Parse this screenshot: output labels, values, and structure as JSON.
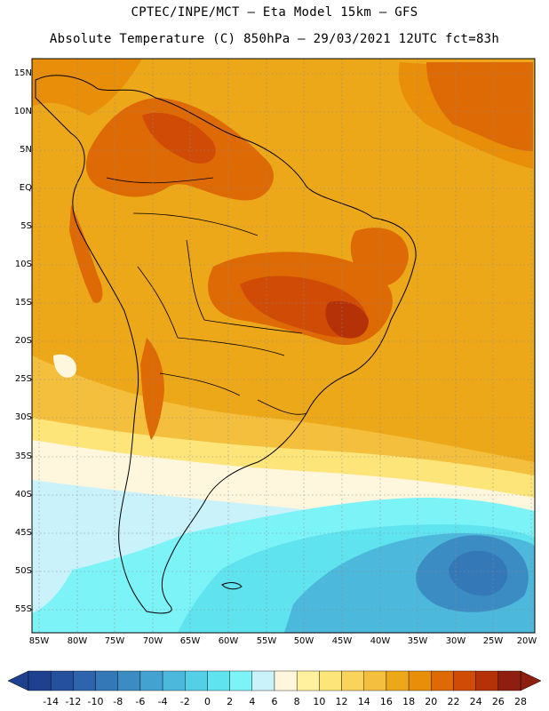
{
  "header": {
    "line1": "CPTEC/INPE/MCT –  Eta Model 15km – GFS",
    "line2": "Absolute Temperature (C) 850hPa – 29/03/2021 12UTC fct=83h"
  },
  "map": {
    "lat_ticks": [
      "15N",
      "10N",
      "5N",
      "EQ",
      "5S",
      "10S",
      "15S",
      "20S",
      "25S",
      "30S",
      "35S",
      "40S",
      "45S",
      "50S",
      "55S"
    ],
    "lon_ticks": [
      "85W",
      "80W",
      "75W",
      "70W",
      "65W",
      "60W",
      "55W",
      "50W",
      "45W",
      "40W",
      "35W",
      "30W",
      "25W",
      "20W"
    ]
  },
  "colorbar": {
    "labels": [
      "-14",
      "-12",
      "-10",
      "-8",
      "-6",
      "-4",
      "-2",
      "0",
      "2",
      "4",
      "6",
      "8",
      "10",
      "12",
      "14",
      "16",
      "18",
      "20",
      "22",
      "24",
      "26",
      "28"
    ],
    "colors": [
      "#1f3f8f",
      "#25509e",
      "#2d64ad",
      "#3478b8",
      "#3c8cc4",
      "#43a2d0",
      "#4bb8dc",
      "#53cfe6",
      "#5fe3ef",
      "#7cf3f7",
      "#c9f2fb",
      "#fff7dd",
      "#fff19e",
      "#fde57a",
      "#f9d35a",
      "#f3bf3c",
      "#eda81a",
      "#e88e08",
      "#de6a05",
      "#cf4b06",
      "#b53108",
      "#8e1e10"
    ]
  },
  "colors": {
    "border": "#000000",
    "grid": "#8a8a8a"
  }
}
